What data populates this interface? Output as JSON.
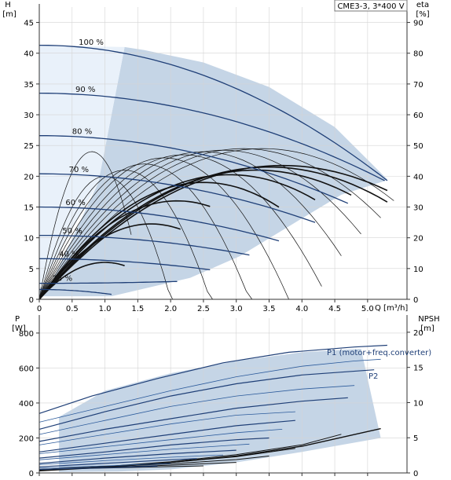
{
  "chart_data": [
    {
      "type": "line",
      "name": "pump-head-curves",
      "badge": "CME3-3, 3*400 V",
      "y_left_label": [
        "H",
        "[m]"
      ],
      "y_right_label": [
        "eta",
        "[%]"
      ],
      "x_label": "Q [m³/h]",
      "xlim": [
        0,
        5.6
      ],
      "ylim_left": [
        0,
        47.5
      ],
      "ylim_right": [
        0,
        95
      ],
      "x_ticks": [
        "0",
        "0.5",
        "1.0",
        "1.5",
        "2.0",
        "2.5",
        "3.0",
        "3.5",
        "4.0",
        "4.5",
        "5.0"
      ],
      "y_left_ticks": [
        "0",
        "5",
        "10",
        "15",
        "20",
        "25",
        "30",
        "35",
        "40",
        "45"
      ],
      "y_right_ticks": [
        "0",
        "10",
        "20",
        "30",
        "40",
        "50",
        "60",
        "70",
        "80",
        "90"
      ],
      "grid": true,
      "colors": {
        "head": "#1f3f77",
        "eta": "#111111",
        "region": "#c5d5e6",
        "region_light": "#e9f1fa"
      },
      "operating_region_q": [
        1.1,
        2.3,
        3.05,
        3.9,
        4.6,
        5.25,
        5.3,
        4.5,
        3.5,
        2.5,
        1.6,
        1.3,
        0.9,
        0.2,
        0.0,
        0.0
      ],
      "operating_region_h": [
        0.5,
        3.5,
        7.0,
        12.5,
        17.0,
        19.2,
        19.5,
        28.0,
        34.5,
        38.5,
        40.5,
        41.0,
        19.0,
        3.0,
        1.8,
        0.5
      ],
      "head_series": [
        {
          "label": "100 %",
          "h0": 41.3,
          "qmax": 5.3,
          "hend": 19.3
        },
        {
          "label": "90 %",
          "h0": 33.5,
          "qmax": 5.26,
          "hend": 19.3
        },
        {
          "label": "80 %",
          "h0": 26.6,
          "qmax": 4.7,
          "hend": 15.6
        },
        {
          "label": "70 %",
          "h0": 20.4,
          "qmax": 4.2,
          "hend": 12.5
        },
        {
          "label": "60 %",
          "h0": 15.0,
          "qmax": 3.65,
          "hend": 9.5
        },
        {
          "label": "50 %",
          "h0": 10.4,
          "qmax": 3.2,
          "hend": 7.2
        },
        {
          "label": "40 %",
          "h0": 6.6,
          "qmax": 2.6,
          "hend": 4.8
        },
        {
          "label": "25 %",
          "h0": 2.6,
          "qmax": 2.1,
          "hend": 2.9
        },
        {
          "label": "",
          "h0": 1.6,
          "qmax": 1.1,
          "hend": 0.8
        }
      ],
      "eta_series": [
        {
          "peak_q": 3.4,
          "peak_eta": 49,
          "qmax": 5.4,
          "bold": false
        },
        {
          "peak_q": 3.1,
          "peak_eta": 49,
          "qmax": 5.2,
          "bold": false
        },
        {
          "peak_q": 2.8,
          "peak_eta": 48.5,
          "qmax": 4.9,
          "bold": false
        },
        {
          "peak_q": 2.5,
          "peak_eta": 48,
          "qmax": 4.6,
          "bold": false
        },
        {
          "peak_q": 2.2,
          "peak_eta": 47,
          "qmax": 4.3,
          "bold": false
        },
        {
          "peak_q": 1.9,
          "peak_eta": 46,
          "qmax": 4.0,
          "bold": false
        },
        {
          "peak_q": 1.6,
          "peak_eta": 44,
          "qmax": 3.6,
          "bold": false
        },
        {
          "peak_q": 1.3,
          "peak_eta": 42,
          "qmax": 3.2,
          "bold": false
        },
        {
          "peak_q": 1.0,
          "peak_eta": 40,
          "qmax": 2.8,
          "bold": false
        },
        {
          "peak_q": 0.8,
          "peak_eta": 48,
          "qmax": 1.4,
          "bold": false
        },
        {
          "peak_q": 3.7,
          "peak_eta": 43.5,
          "qmax": 5.3,
          "bold": true
        },
        {
          "peak_q": 3.5,
          "peak_eta": 43,
          "qmax": 5.3,
          "bold": true
        },
        {
          "peak_q": 3.3,
          "peak_eta": 42,
          "qmax": 4.75,
          "bold": true
        },
        {
          "peak_q": 2.9,
          "peak_eta": 40.5,
          "qmax": 4.2,
          "bold": true
        },
        {
          "peak_q": 2.5,
          "peak_eta": 38,
          "qmax": 3.65,
          "bold": true
        },
        {
          "peak_q": 2.1,
          "peak_eta": 32,
          "qmax": 2.6,
          "bold": true
        },
        {
          "peak_q": 1.7,
          "peak_eta": 24.5,
          "qmax": 2.15,
          "bold": true
        },
        {
          "peak_q": 1.0,
          "peak_eta": 12,
          "qmax": 1.3,
          "bold": true
        }
      ]
    },
    {
      "type": "line",
      "name": "power-npsh-curves",
      "y_left_label": [
        "P",
        "[W]"
      ],
      "y_right_label": [
        "NPSH",
        "[m]"
      ],
      "xlim": [
        0,
        5.6
      ],
      "ylim_left": [
        0,
        885
      ],
      "ylim_right": [
        0,
        22
      ],
      "y_left_ticks": [
        "0",
        "200",
        "400",
        "600",
        "800"
      ],
      "y_right_ticks": [
        "0",
        "5",
        "10",
        "15",
        "20"
      ],
      "grid": true,
      "annotations": {
        "p1": "P1 (motor+freq.converter)",
        "p2": "P2"
      },
      "operating_region_q": [
        0.3,
        1.2,
        2.0,
        3.0,
        4.0,
        5.2,
        4.9,
        4.0,
        3.0,
        2.0,
        1.0,
        0.3
      ],
      "operating_region_p": [
        5,
        8,
        20,
        60,
        120,
        200,
        710,
        690,
        640,
        570,
        470,
        320
      ],
      "power_p1": [
        {
          "q": [
            0,
            0.8,
            1.8,
            2.8,
            3.8,
            4.8,
            5.3
          ],
          "p": [
            340,
            440,
            540,
            630,
            690,
            720,
            730
          ]
        },
        {
          "q": [
            0,
            1.0,
            2.0,
            3.0,
            4.0,
            5.1
          ],
          "p": [
            250,
            350,
            440,
            510,
            560,
            590
          ]
        },
        {
          "q": [
            0,
            1.0,
            2.0,
            3.0,
            4.0,
            4.7
          ],
          "p": [
            180,
            250,
            310,
            370,
            410,
            430
          ]
        },
        {
          "q": [
            0,
            1.0,
            2.0,
            3.0,
            3.9
          ],
          "p": [
            120,
            170,
            220,
            270,
            300
          ]
        },
        {
          "q": [
            0,
            1.0,
            2.0,
            3.0,
            3.5
          ],
          "p": [
            85,
            120,
            160,
            190,
            200
          ]
        },
        {
          "q": [
            0,
            1.0,
            2.0,
            3.0
          ],
          "p": [
            55,
            85,
            110,
            130
          ]
        },
        {
          "q": [
            0,
            1.0,
            2.0,
            2.4
          ],
          "p": [
            35,
            55,
            75,
            82
          ]
        },
        {
          "q": [
            0,
            1.0,
            1.8
          ],
          "p": [
            20,
            30,
            40
          ]
        }
      ],
      "power_p2": [
        {
          "q": [
            0,
            1.0,
            2.0,
            3.0,
            4.0,
            4.8,
            5.2
          ],
          "p": [
            290,
            380,
            470,
            550,
            610,
            640,
            650
          ]
        },
        {
          "q": [
            0,
            1.0,
            2.0,
            3.0,
            4.0,
            4.8
          ],
          "p": [
            220,
            300,
            380,
            440,
            480,
            500
          ]
        },
        {
          "q": [
            0,
            1.0,
            2.0,
            3.0,
            3.9
          ],
          "p": [
            160,
            220,
            280,
            330,
            350
          ]
        },
        {
          "q": [
            0,
            1.0,
            2.0,
            3.0,
            3.7
          ],
          "p": [
            110,
            150,
            190,
            230,
            250
          ]
        },
        {
          "q": [
            0,
            1.0,
            2.0,
            3.0,
            3.2
          ],
          "p": [
            75,
            105,
            135,
            160,
            165
          ]
        },
        {
          "q": [
            0,
            1.0,
            2.0,
            2.8
          ],
          "p": [
            48,
            70,
            90,
            103
          ]
        },
        {
          "q": [
            0,
            1.0,
            2.0
          ],
          "p": [
            28,
            40,
            55
          ]
        }
      ],
      "npsh": [
        {
          "q": [
            0,
            1.0,
            2.0,
            3.0,
            4.0,
            5.2
          ],
          "n": [
            0.3,
            0.8,
            1.5,
            2.4,
            3.8,
            6.3
          ]
        },
        {
          "q": [
            0,
            1.0,
            2.0,
            3.0,
            4.0,
            4.6
          ],
          "n": [
            0.4,
            0.9,
            1.6,
            2.6,
            4.0,
            5.5
          ]
        },
        {
          "q": [
            0,
            1.0,
            2.0,
            3.0,
            3.9
          ],
          "n": [
            0.4,
            0.9,
            1.5,
            2.3,
            3.5
          ]
        },
        {
          "q": [
            0,
            1.0,
            2.0,
            3.0,
            3.5
          ],
          "n": [
            0.5,
            0.9,
            1.3,
            1.9,
            2.4
          ]
        },
        {
          "q": [
            0,
            1.0,
            2.0,
            3.0
          ],
          "n": [
            0.5,
            0.8,
            1.1,
            1.5
          ]
        },
        {
          "q": [
            0,
            1.0,
            2.0,
            2.5
          ],
          "n": [
            0.5,
            0.7,
            0.9,
            1.0
          ]
        }
      ]
    }
  ]
}
